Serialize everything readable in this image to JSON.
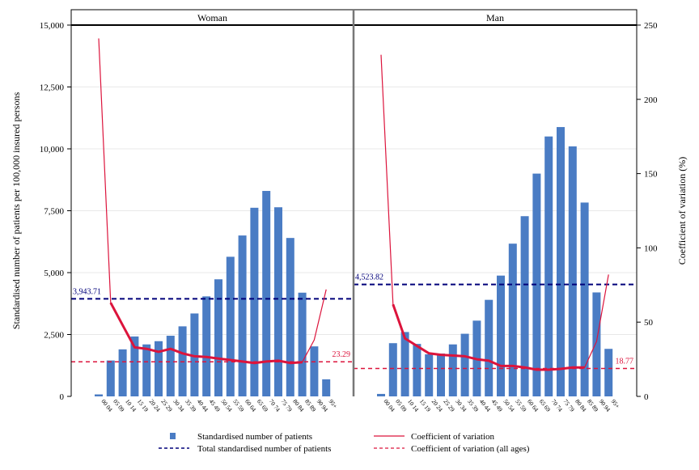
{
  "chart_data": {
    "type": "bar",
    "panels": [
      "Woman",
      "Man"
    ],
    "categories": [
      "00-04",
      "05-09",
      "10-14",
      "15-19",
      "20-24",
      "25-29",
      "30-34",
      "35-39",
      "40-44",
      "45-49",
      "50-54",
      "55-59",
      "60-64",
      "65-69",
      "70-74",
      "75-79",
      "80-84",
      "85-89",
      "90-94",
      "95+"
    ],
    "category_labels": [
      [
        "00",
        "04"
      ],
      [
        "05",
        "09"
      ],
      [
        "10",
        "14"
      ],
      [
        "15",
        "19"
      ],
      [
        "20",
        "24"
      ],
      [
        "25",
        "29"
      ],
      [
        "30",
        "34"
      ],
      [
        "35",
        "39"
      ],
      [
        "40",
        "44"
      ],
      [
        "45",
        "49"
      ],
      [
        "50",
        "54"
      ],
      [
        "55",
        "59"
      ],
      [
        "60",
        "64"
      ],
      [
        "65",
        "69"
      ],
      [
        "70",
        "74"
      ],
      [
        "75",
        "79"
      ],
      [
        "80",
        "84"
      ],
      [
        "85",
        "89"
      ],
      [
        "90",
        "94"
      ],
      [
        "95+",
        ""
      ]
    ],
    "ylabel": "Standardised number of patients per 100,000 insured persons",
    "y2label": "Coefficient of variation (%)",
    "ylim": [
      0,
      15000
    ],
    "y2lim": [
      0,
      250
    ],
    "yticks": [
      "0",
      "2,500",
      "5,000",
      "7,500",
      "10,000",
      "12,500",
      "15,000"
    ],
    "yticks_values": [
      0,
      2500,
      5000,
      7500,
      10000,
      12500,
      15000
    ],
    "y2ticks": [
      "0",
      "50",
      "100",
      "150",
      "200",
      "250"
    ],
    "y2ticks_values": [
      0,
      50,
      100,
      150,
      200,
      250
    ],
    "series": [
      {
        "name": "Standardised number of patients",
        "type": "bar",
        "values": {
          "Woman": [
            80,
            1450,
            1900,
            2420,
            2100,
            2230,
            2450,
            2830,
            3350,
            4040,
            4730,
            5640,
            6500,
            7620,
            8300,
            7640,
            6400,
            4190,
            2020,
            690
          ],
          "Man": [
            100,
            2150,
            2600,
            2120,
            1700,
            1730,
            2100,
            2530,
            3060,
            3900,
            4880,
            6170,
            7280,
            9000,
            10500,
            10880,
            10100,
            7830,
            4200,
            1920
          ]
        }
      },
      {
        "name": "Coefficient of variation",
        "type": "line",
        "values": {
          "Woman": [
            241,
            63,
            48,
            33,
            32,
            30,
            32,
            29,
            27,
            26.5,
            25.5,
            24.5,
            23.5,
            22.5,
            23.5,
            24,
            22.5,
            23,
            38,
            72
          ],
          "Man": [
            230,
            62,
            39,
            34,
            29,
            28,
            27.5,
            27,
            25,
            24,
            20.5,
            20.5,
            19.5,
            18,
            18,
            18.5,
            19.5,
            19.5,
            37,
            82
          ]
        }
      }
    ],
    "reference_lines": {
      "total_standardised": {
        "name": "Total standardised number of patients",
        "values": {
          "Woman": 3943.71,
          "Man": 4523.82
        },
        "labels": {
          "Woman": "3,943.71",
          "Man": "4,523.82"
        }
      },
      "cv_all_ages": {
        "name": "Coefficient of variation (all ages)",
        "values": {
          "Woman": 23.29,
          "Man": 18.77
        },
        "labels": {
          "Woman": "23.29",
          "Man": "18.77"
        }
      }
    },
    "legend": [
      "Standardised number of patients",
      "Coefficient of variation",
      "Total standardised number of patients",
      "Coefficient of variation (all ages)"
    ],
    "legend_placement": "bottom",
    "colors": {
      "bar": "#4a7cc4",
      "cv_line": "#dc143c",
      "total_line": "#00007a",
      "cv_all_line": "#dc143c",
      "header_bg": "#ffffff",
      "grid": "#e8e8e8"
    },
    "grid": true
  }
}
